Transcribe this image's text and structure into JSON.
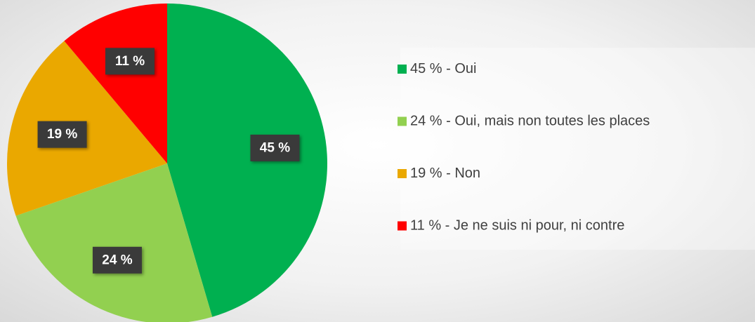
{
  "chart_data": {
    "type": "pie",
    "categories": [
      "45 % - Oui",
      "24 % - Oui, mais non toutes les places",
      "19 % - Non",
      "11 % - Je ne suis ni pour, ni contre"
    ],
    "values": [
      45,
      24,
      19,
      11
    ],
    "value_labels": [
      "45 %",
      "24 %",
      "19 %",
      "11 %"
    ],
    "colors": [
      "#00b050",
      "#92d050",
      "#eaa800",
      "#ff0000"
    ],
    "legend": "right"
  }
}
